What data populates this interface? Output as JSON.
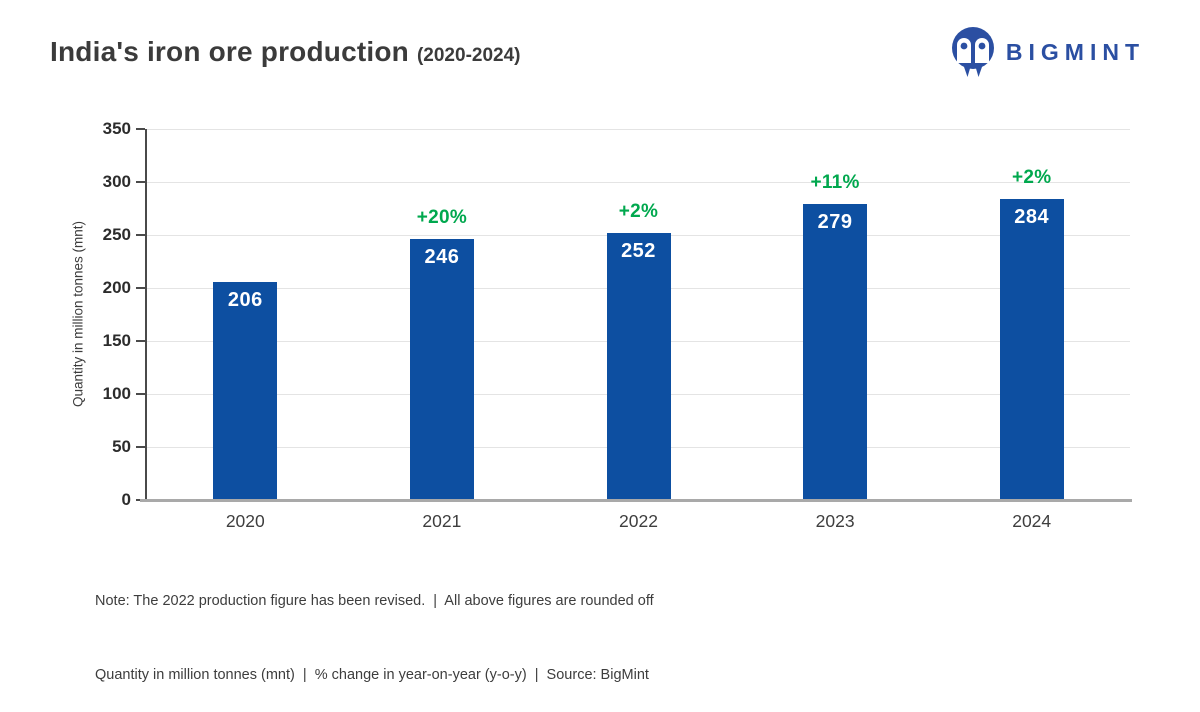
{
  "header": {
    "title": "India's iron ore production",
    "title_suffix": "(2020-2024)",
    "brand": {
      "name": "BIGMINT",
      "logo_icon": "bigmint-monogram-icon",
      "color": "#2b4fa2"
    }
  },
  "chart_data": {
    "type": "bar",
    "title": "India's iron ore production (2020-2024)",
    "categories": [
      "2020",
      "2021",
      "2022",
      "2023",
      "2024"
    ],
    "values": [
      206,
      246,
      252,
      279,
      284
    ],
    "pct_change": [
      null,
      "+20%",
      "+2%",
      "+11%",
      "+2%"
    ],
    "xlabel": "",
    "ylabel": "Quantity in million tonnes (mnt)",
    "ylim": [
      0,
      350
    ],
    "yticks": [
      0,
      50,
      100,
      150,
      200,
      250,
      300,
      350
    ],
    "grid": true,
    "legend": false,
    "bar_color": "#0d4fa1",
    "value_label_color": "#ffffff",
    "pct_label_color": "#00a84e"
  },
  "notes": {
    "line1": "Note: The 2022 production figure has been revised.  |  All above figures are rounded off",
    "line2": "Quantity in million tonnes (mnt)  |  % change in year-on-year (y-o-y)  |  Source: BigMint"
  }
}
